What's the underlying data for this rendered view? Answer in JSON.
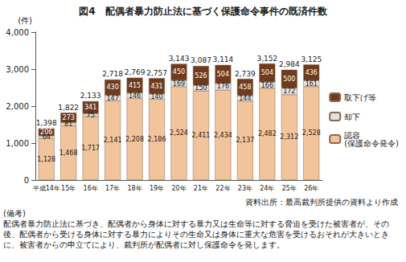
{
  "chart_data": {
    "type": "bar",
    "title": "図4　配偶者暴力防止法に基づく保護命令事件の既済件数",
    "y_label": "(件)",
    "categories": [
      "平成14年",
      "15年",
      "16年",
      "17年",
      "18年",
      "19年",
      "20年",
      "21年",
      "22年",
      "23年",
      "24年",
      "25年",
      "26年"
    ],
    "series": [
      {
        "name": "認容\n(保護命令発令)",
        "color": "#f2c49b",
        "values": [
          1128,
          1468,
          1717,
          2141,
          2208,
          2186,
          2524,
          2411,
          2434,
          2137,
          2482,
          2312,
          2528
        ],
        "value_labels": [
          "1,128",
          "1,468",
          "1,717",
          "2,141",
          "2,208",
          "2,186",
          "2,524",
          "2,411",
          "2,434",
          "2,137",
          "2,482",
          "2,312",
          "2,528"
        ]
      },
      {
        "name": "却下",
        "color": "#e3e3e3",
        "values": [
          64,
          81,
          75,
          147,
          146,
          140,
          169,
          150,
          176,
          144,
          166,
          172,
          161
        ],
        "value_labels": [
          "64",
          "81",
          "75",
          "147",
          "146",
          "140",
          "169",
          "150",
          "176",
          "144",
          "166",
          "172",
          "161"
        ]
      },
      {
        "name": "取下げ等",
        "color": "#6e3b1e",
        "values": [
          206,
          273,
          341,
          430,
          415,
          431,
          450,
          526,
          504,
          458,
          504,
          500,
          436
        ],
        "value_labels": [
          "206",
          "273",
          "341",
          "430",
          "415",
          "431",
          "450",
          "526",
          "504",
          "458",
          "504",
          "500",
          "436"
        ]
      }
    ],
    "totals": [
      1398,
      1822,
      2133,
      2718,
      2769,
      2757,
      3143,
      3087,
      3114,
      2739,
      3152,
      2984,
      3125
    ],
    "total_labels": [
      "1,398",
      "1,822",
      "2,133",
      "2,718",
      "2,769",
      "2,757",
      "3,143",
      "3,087",
      "3,114",
      "2,739",
      "3,152",
      "2,984",
      "3,125"
    ],
    "ylim": [
      0,
      4000
    ],
    "yticks": [
      0,
      {
        "value": 1000,
        "label": "1,000"
      },
      {
        "value": 2000,
        "label": "2,000"
      },
      {
        "value": 3000,
        "label": "3,000"
      },
      {
        "value": 4000,
        "label": "4,000"
      }
    ],
    "stacked": true,
    "data_labels": true,
    "grid": false,
    "legend": "right"
  },
  "source": "資料出所：最高裁判所提供の資料より作成",
  "notes": {
    "heading": "(備考)",
    "text": "配偶者暴力防止法に基づき、配偶者から身体に対する暴力又は生命等に対する脅迫を受けた被害者が、その後、配偶者から受ける身体に対する暴力によりその生命又は身体に重大な危害を受けるおそれが大きいときに、被害者からの申立てにより、裁判所が配偶者に対し保護命令を発します。"
  }
}
